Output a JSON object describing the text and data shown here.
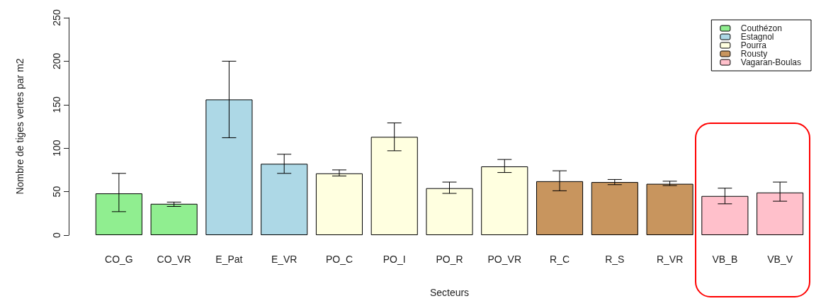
{
  "chart_data": {
    "type": "bar",
    "xlabel": "Secteurs",
    "ylabel": "Nombre de tiges vertes par m2",
    "categories": [
      "CO_G",
      "CO_VR",
      "E_Pat",
      "E_VR",
      "PO_C",
      "PO_I",
      "PO_R",
      "PO_VR",
      "R_C",
      "R_S",
      "R_VR",
      "VB_B",
      "VB_V"
    ],
    "stacked": true,
    "series": [
      {
        "name": "Couthézon",
        "color": "#90ee90",
        "values": [
          48,
          36,
          null,
          null,
          null,
          null,
          null,
          null,
          null,
          null,
          null,
          null,
          null
        ],
        "errors": [
          [
            27,
            71
          ],
          [
            33,
            38
          ],
          null,
          null,
          null,
          null,
          null,
          null,
          null,
          null,
          null,
          null,
          null
        ]
      },
      {
        "name": "Estagnol",
        "color": "#add8e6",
        "values": [
          null,
          null,
          156,
          82,
          null,
          null,
          null,
          null,
          null,
          null,
          null,
          null,
          null
        ],
        "errors": [
          null,
          null,
          [
            112,
            200
          ],
          [
            71,
            93
          ],
          null,
          null,
          null,
          null,
          null,
          null,
          null,
          null,
          null
        ]
      },
      {
        "name": "Pourra",
        "color": "#ffffe0",
        "values": [
          null,
          null,
          null,
          null,
          71,
          113,
          54,
          79,
          null,
          null,
          null,
          null,
          null
        ],
        "errors": [
          null,
          null,
          null,
          null,
          [
            68,
            75
          ],
          [
            97,
            129
          ],
          [
            48,
            61
          ],
          [
            72,
            87
          ],
          null,
          null,
          null,
          null,
          null
        ]
      },
      {
        "name": "Rousty",
        "color": "#c8955e",
        "values": [
          null,
          null,
          null,
          null,
          null,
          null,
          null,
          null,
          62,
          61,
          59,
          null,
          null
        ],
        "errors": [
          null,
          null,
          null,
          null,
          null,
          null,
          null,
          null,
          [
            51,
            74
          ],
          [
            58,
            64
          ],
          [
            57,
            62
          ],
          null,
          null
        ]
      },
      {
        "name": "Vagaran-Boulas",
        "color": "#ffc0cb",
        "values": [
          null,
          null,
          null,
          null,
          null,
          null,
          null,
          null,
          null,
          null,
          null,
          45,
          49
        ],
        "errors": [
          null,
          null,
          null,
          null,
          null,
          null,
          null,
          null,
          null,
          null,
          null,
          [
            36,
            54
          ],
          [
            39,
            61
          ]
        ]
      }
    ],
    "ylim": [
      0,
      250
    ],
    "yticks": [
      0,
      50,
      100,
      150,
      200,
      250
    ],
    "grid": false,
    "legend": "top right"
  }
}
